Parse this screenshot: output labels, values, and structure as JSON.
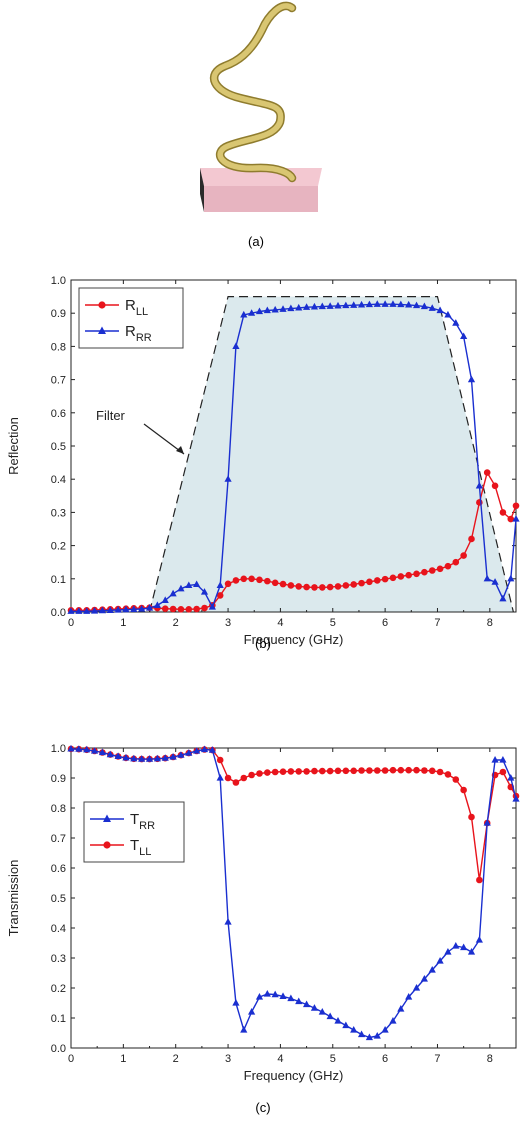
{
  "captions": [
    "(a)",
    "(b)",
    "(c)"
  ],
  "colors": {
    "red": "#e8141c",
    "blue": "#1a2fd0",
    "fill": "#dbe9ed",
    "helix": "#d9c672",
    "helix_dark": "#8f7c2e",
    "base_top": "#f3c8d1",
    "base_front": "#e7b4c0",
    "base_side": "#2a2a2a"
  },
  "chart_data": [
    {
      "type": "line",
      "panel": "b",
      "xlabel": "Frequency (GHz)",
      "ylabel": "Reflection",
      "xlim": [
        0,
        8.5
      ],
      "ylim": [
        0,
        1.0
      ],
      "xticks": [
        0,
        1,
        2,
        3,
        4,
        5,
        6,
        7,
        8
      ],
      "yticks": [
        0.0,
        0.1,
        0.2,
        0.3,
        0.4,
        0.5,
        0.6,
        0.7,
        0.8,
        0.9,
        1.0
      ],
      "legend_position": "top-left",
      "legend": [
        {
          "main": "R",
          "sub": "LL",
          "series": 0
        },
        {
          "main": "R",
          "sub": "RR",
          "series": 1
        }
      ],
      "annotation": "Filter",
      "filter": {
        "x": [
          1.5,
          3.0,
          7.0,
          8.45
        ],
        "y": [
          0.0,
          0.95,
          0.95,
          0.0
        ]
      },
      "series": [
        {
          "name": "RLL",
          "color": "red",
          "marker": "circle",
          "x": [
            0,
            0.15,
            0.3,
            0.45,
            0.6,
            0.75,
            0.9,
            1.05,
            1.2,
            1.35,
            1.5,
            1.65,
            1.8,
            1.95,
            2.1,
            2.25,
            2.4,
            2.55,
            2.7,
            2.85,
            3.0,
            3.15,
            3.3,
            3.45,
            3.6,
            3.75,
            3.9,
            4.05,
            4.2,
            4.35,
            4.5,
            4.65,
            4.8,
            4.95,
            5.1,
            5.25,
            5.4,
            5.55,
            5.7,
            5.85,
            6.0,
            6.15,
            6.3,
            6.45,
            6.6,
            6.75,
            6.9,
            7.05,
            7.2,
            7.35,
            7.5,
            7.65,
            7.8,
            7.95,
            8.1,
            8.25,
            8.4,
            8.5
          ],
          "y": [
            0.005,
            0.005,
            0.005,
            0.006,
            0.007,
            0.008,
            0.009,
            0.01,
            0.011,
            0.012,
            0.013,
            0.012,
            0.01,
            0.009,
            0.008,
            0.008,
            0.009,
            0.012,
            0.02,
            0.05,
            0.085,
            0.095,
            0.1,
            0.1,
            0.097,
            0.093,
            0.088,
            0.084,
            0.08,
            0.077,
            0.075,
            0.074,
            0.074,
            0.075,
            0.077,
            0.08,
            0.083,
            0.087,
            0.091,
            0.095,
            0.099,
            0.103,
            0.107,
            0.111,
            0.115,
            0.12,
            0.125,
            0.13,
            0.138,
            0.15,
            0.17,
            0.22,
            0.33,
            0.42,
            0.38,
            0.3,
            0.28,
            0.32
          ]
        },
        {
          "name": "RRR",
          "color": "blue",
          "marker": "triangle",
          "x": [
            0,
            0.15,
            0.3,
            0.45,
            0.6,
            0.75,
            0.9,
            1.05,
            1.2,
            1.35,
            1.5,
            1.65,
            1.8,
            1.95,
            2.1,
            2.25,
            2.4,
            2.55,
            2.7,
            2.85,
            3.0,
            3.15,
            3.3,
            3.45,
            3.6,
            3.75,
            3.9,
            4.05,
            4.2,
            4.35,
            4.5,
            4.65,
            4.8,
            4.95,
            5.1,
            5.25,
            5.4,
            5.55,
            5.7,
            5.85,
            6.0,
            6.15,
            6.3,
            6.45,
            6.6,
            6.75,
            6.9,
            7.05,
            7.2,
            7.35,
            7.5,
            7.65,
            7.8,
            7.95,
            8.1,
            8.25,
            8.4,
            8.5
          ],
          "y": [
            0.002,
            0.002,
            0.002,
            0.003,
            0.004,
            0.005,
            0.006,
            0.007,
            0.008,
            0.009,
            0.012,
            0.02,
            0.035,
            0.055,
            0.07,
            0.08,
            0.083,
            0.06,
            0.015,
            0.08,
            0.4,
            0.8,
            0.895,
            0.9,
            0.905,
            0.908,
            0.91,
            0.912,
            0.914,
            0.916,
            0.918,
            0.919,
            0.92,
            0.921,
            0.922,
            0.923,
            0.924,
            0.925,
            0.926,
            0.927,
            0.927,
            0.927,
            0.926,
            0.925,
            0.923,
            0.92,
            0.915,
            0.908,
            0.895,
            0.87,
            0.83,
            0.7,
            0.38,
            0.1,
            0.09,
            0.04,
            0.1,
            0.28
          ]
        }
      ]
    },
    {
      "type": "line",
      "panel": "c",
      "xlabel": "Frequency (GHz)",
      "ylabel": "Transmission",
      "xlim": [
        0,
        8.5
      ],
      "ylim": [
        0,
        1.0
      ],
      "xticks": [
        0,
        1,
        2,
        3,
        4,
        5,
        6,
        7,
        8
      ],
      "yticks": [
        0.0,
        0.1,
        0.2,
        0.3,
        0.4,
        0.5,
        0.6,
        0.7,
        0.8,
        0.9,
        1.0
      ],
      "legend_position": "top-left",
      "legend": [
        {
          "main": "T",
          "sub": "RR",
          "series": 0
        },
        {
          "main": "T",
          "sub": "LL",
          "series": 1
        }
      ],
      "series": [
        {
          "name": "TRR",
          "color": "blue",
          "marker": "triangle",
          "x": [
            0,
            0.15,
            0.3,
            0.45,
            0.6,
            0.75,
            0.9,
            1.05,
            1.2,
            1.35,
            1.5,
            1.65,
            1.8,
            1.95,
            2.1,
            2.25,
            2.4,
            2.55,
            2.7,
            2.85,
            3.0,
            3.15,
            3.3,
            3.45,
            3.6,
            3.75,
            3.9,
            4.05,
            4.2,
            4.35,
            4.5,
            4.65,
            4.8,
            4.95,
            5.1,
            5.25,
            5.4,
            5.55,
            5.7,
            5.85,
            6.0,
            6.15,
            6.3,
            6.45,
            6.6,
            6.75,
            6.9,
            7.05,
            7.2,
            7.35,
            7.5,
            7.65,
            7.8,
            7.95,
            8.1,
            8.25,
            8.4,
            8.5
          ],
          "y": [
            0.997,
            0.996,
            0.994,
            0.99,
            0.985,
            0.978,
            0.972,
            0.967,
            0.964,
            0.963,
            0.963,
            0.964,
            0.966,
            0.97,
            0.976,
            0.983,
            0.99,
            0.995,
            0.993,
            0.9,
            0.42,
            0.15,
            0.06,
            0.12,
            0.17,
            0.18,
            0.178,
            0.172,
            0.165,
            0.155,
            0.145,
            0.133,
            0.12,
            0.105,
            0.09,
            0.075,
            0.06,
            0.045,
            0.035,
            0.04,
            0.06,
            0.09,
            0.13,
            0.17,
            0.2,
            0.23,
            0.26,
            0.29,
            0.32,
            0.34,
            0.335,
            0.32,
            0.36,
            0.75,
            0.96,
            0.96,
            0.9,
            0.83
          ]
        },
        {
          "name": "TLL",
          "color": "red",
          "marker": "circle",
          "x": [
            0,
            0.15,
            0.3,
            0.45,
            0.6,
            0.75,
            0.9,
            1.05,
            1.2,
            1.35,
            1.5,
            1.65,
            1.8,
            1.95,
            2.1,
            2.25,
            2.4,
            2.55,
            2.7,
            2.85,
            3.0,
            3.15,
            3.3,
            3.45,
            3.6,
            3.75,
            3.9,
            4.05,
            4.2,
            4.35,
            4.5,
            4.65,
            4.8,
            4.95,
            5.1,
            5.25,
            5.4,
            5.55,
            5.7,
            5.85,
            6.0,
            6.15,
            6.3,
            6.45,
            6.6,
            6.75,
            6.9,
            7.05,
            7.2,
            7.35,
            7.5,
            7.65,
            7.8,
            7.95,
            8.1,
            8.25,
            8.4,
            8.5
          ],
          "y": [
            0.997,
            0.996,
            0.994,
            0.99,
            0.985,
            0.978,
            0.972,
            0.967,
            0.964,
            0.963,
            0.963,
            0.964,
            0.966,
            0.97,
            0.976,
            0.983,
            0.99,
            0.995,
            0.993,
            0.96,
            0.9,
            0.885,
            0.9,
            0.91,
            0.915,
            0.918,
            0.92,
            0.921,
            0.922,
            0.922,
            0.922,
            0.923,
            0.923,
            0.923,
            0.924,
            0.924,
            0.924,
            0.925,
            0.925,
            0.925,
            0.925,
            0.926,
            0.926,
            0.926,
            0.926,
            0.925,
            0.924,
            0.92,
            0.912,
            0.895,
            0.86,
            0.77,
            0.56,
            0.75,
            0.91,
            0.92,
            0.87,
            0.84
          ]
        }
      ]
    }
  ]
}
